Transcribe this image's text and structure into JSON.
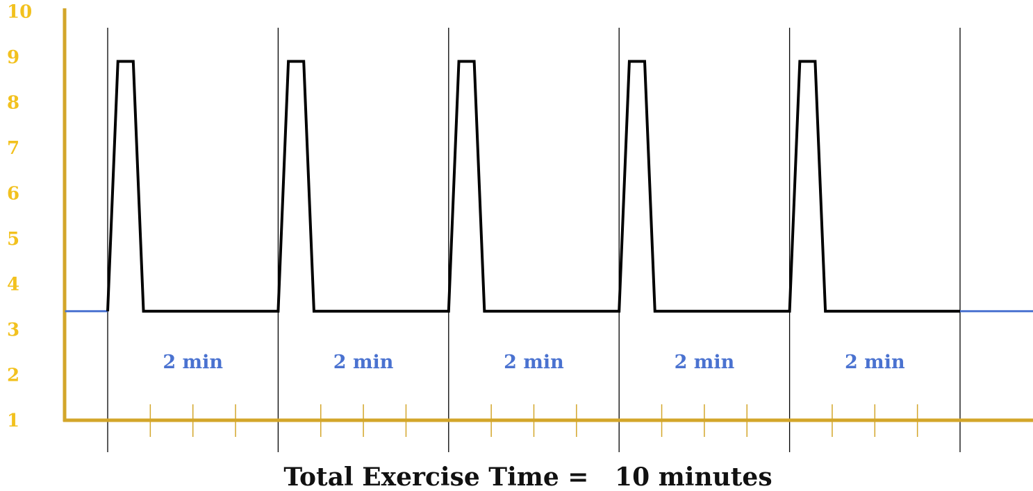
{
  "chart_data": {
    "type": "line",
    "xlabel": "Total Exercise Time =   10 minutes",
    "ylabel": "",
    "y_ticks": [
      "1",
      "2",
      "3",
      "4",
      "5",
      "6",
      "7",
      "8",
      "9",
      "10"
    ],
    "ylim": [
      1,
      10
    ],
    "xlim": [
      -1,
      11
    ],
    "grid": false,
    "interval_label": "2  min",
    "intervals": [
      {
        "start": 0,
        "end": 2,
        "label": "2  min"
      },
      {
        "start": 2,
        "end": 4,
        "label": "2  min"
      },
      {
        "start": 4,
        "end": 6,
        "label": "2  min"
      },
      {
        "start": 6,
        "end": 8,
        "label": "2  min"
      },
      {
        "start": 8,
        "end": 10,
        "label": "2  min"
      }
    ],
    "minor_ticks_per_interval": 4,
    "series": [
      {
        "role": "warmup-cooldown",
        "color": "#4a72d0",
        "segments": [
          [
            [
              -0.5,
              3.4
            ],
            [
              0,
              3.4
            ]
          ],
          [
            [
              10,
              3.4
            ],
            [
              11,
              3.4
            ]
          ]
        ]
      },
      {
        "role": "interval-effort",
        "color": "#000000",
        "points": [
          [
            0,
            3.4
          ],
          [
            0.12,
            8.9
          ],
          [
            0.3,
            8.9
          ],
          [
            0.42,
            3.4
          ],
          [
            2,
            3.4
          ],
          [
            2.12,
            8.9
          ],
          [
            2.3,
            8.9
          ],
          [
            2.42,
            3.4
          ],
          [
            4,
            3.4
          ],
          [
            4.12,
            8.9
          ],
          [
            4.3,
            8.9
          ],
          [
            4.42,
            3.4
          ],
          [
            6,
            3.4
          ],
          [
            6.12,
            8.9
          ],
          [
            6.3,
            8.9
          ],
          [
            6.42,
            3.4
          ],
          [
            8,
            3.4
          ],
          [
            8.12,
            8.9
          ],
          [
            8.3,
            8.9
          ],
          [
            8.42,
            3.4
          ],
          [
            10,
            3.4
          ]
        ]
      }
    ],
    "colors": {
      "axis": "#d3a62a",
      "tick_label": "#f2c11e",
      "interval_label": "#4a72d0",
      "effort_line": "#000000",
      "base_line": "#4a72d0",
      "divider": "#000000"
    }
  }
}
